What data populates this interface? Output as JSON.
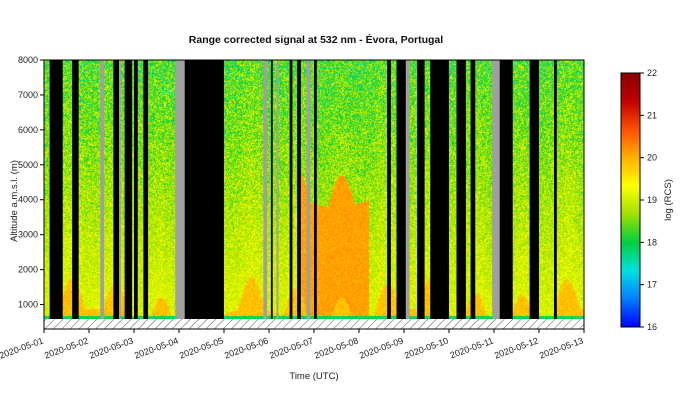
{
  "chart_data": {
    "type": "heatmap",
    "title": "Range corrected signal at 532 nm - Évora, Portugal",
    "xlabel": "Time (UTC)",
    "ylabel": "Altitude a.m.s.l. (m)",
    "colorbar_label": "log (RCS)",
    "xlim": [
      "2020-05-01",
      "2020-05-13"
    ],
    "x_ticks": [
      "2020-05-01",
      "2020-05-02",
      "2020-05-03",
      "2020-05-04",
      "2020-05-05",
      "2020-05-06",
      "2020-05-07",
      "2020-05-08",
      "2020-05-09",
      "2020-05-10",
      "2020-05-11",
      "2020-05-12",
      "2020-05-13"
    ],
    "ylim": [
      300,
      8000
    ],
    "y_ticks": [
      1000,
      2000,
      3000,
      4000,
      5000,
      6000,
      7000,
      8000
    ],
    "colorbar_range": [
      16,
      22
    ],
    "colorbar_ticks": [
      16,
      17,
      18,
      19,
      20,
      21,
      22
    ],
    "colormap": [
      "#0000ff",
      "#0080ff",
      "#00e0e0",
      "#00d040",
      "#a0e000",
      "#ffff00",
      "#ffb000",
      "#ff5000",
      "#c00000",
      "#880000"
    ],
    "no_data_color": "#000000",
    "gap_color": "#a0a0a0",
    "no_data_intervals": [
      [
        "2020-05-01 03:00",
        "2020-05-01 10:00"
      ],
      [
        "2020-05-01 15:00",
        "2020-05-01 18:30"
      ],
      [
        "2020-05-02 13:00",
        "2020-05-02 16:00"
      ],
      [
        "2020-05-02 19:00",
        "2020-05-02 23:00"
      ],
      [
        "2020-05-03 00:00",
        "2020-05-03 02:00"
      ],
      [
        "2020-05-03 05:00",
        "2020-05-03 07:30"
      ],
      [
        "2020-05-04 03:00",
        "2020-05-04 23:59"
      ],
      [
        "2020-05-06 01:00",
        "2020-05-06 02:00"
      ],
      [
        "2020-05-06 11:00",
        "2020-05-06 12:30"
      ],
      [
        "2020-05-06 15:00",
        "2020-05-06 17:00"
      ],
      [
        "2020-05-07 00:00",
        "2020-05-07 01:30"
      ],
      [
        "2020-05-08 15:00",
        "2020-05-08 17:00"
      ],
      [
        "2020-05-08 20:00",
        "2020-05-09 01:00"
      ],
      [
        "2020-05-09 07:00",
        "2020-05-09 11:00"
      ],
      [
        "2020-05-09 14:00",
        "2020-05-10 00:00"
      ],
      [
        "2020-05-10 04:00",
        "2020-05-10 09:00"
      ],
      [
        "2020-05-10 11:30",
        "2020-05-10 14:00"
      ],
      [
        "2020-05-11 03:00",
        "2020-05-11 10:00"
      ],
      [
        "2020-05-11 19:00",
        "2020-05-12 00:00"
      ],
      [
        "2020-05-12 08:00",
        "2020-05-12 09:30"
      ]
    ],
    "gap_intervals": [
      [
        "2020-05-02 06:00",
        "2020-05-02 08:00"
      ],
      [
        "2020-05-02 16:00",
        "2020-05-02 17:00"
      ],
      [
        "2020-05-03 22:00",
        "2020-05-04 03:00"
      ],
      [
        "2020-05-05 21:00",
        "2020-05-05 23:00"
      ],
      [
        "2020-05-06 04:00",
        "2020-05-06 05:00"
      ],
      [
        "2020-05-06 20:00",
        "2020-05-06 22:00"
      ],
      [
        "2020-05-09 01:00",
        "2020-05-09 03:00"
      ],
      [
        "2020-05-10 23:00",
        "2020-05-11 03:00"
      ]
    ]
  }
}
